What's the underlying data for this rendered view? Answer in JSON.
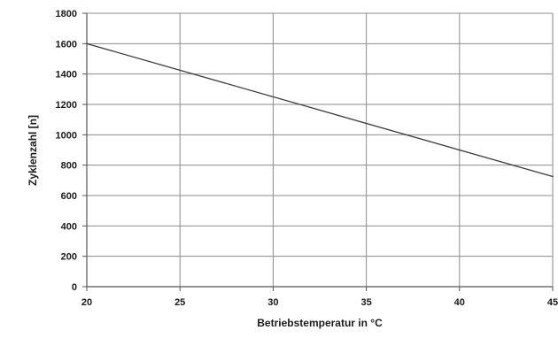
{
  "chart_data": {
    "type": "line",
    "title": "",
    "xlabel": "Betriebstemperatur in °C",
    "ylabel": "Zyklenzahl [n]",
    "xlim": [
      20,
      45
    ],
    "ylim": [
      0,
      1800
    ],
    "x_ticks": [
      "20",
      "25",
      "30",
      "35",
      "40",
      "45"
    ],
    "y_ticks": [
      "0",
      "200",
      "400",
      "600",
      "800",
      "1000",
      "1200",
      "1400",
      "1600",
      "1800"
    ],
    "grid": true,
    "legend": "none",
    "series": [
      {
        "x": [
          20,
          45
        ],
        "y": [
          1600,
          725
        ]
      }
    ],
    "colors": {
      "line": "#3a3a3a",
      "grid": "#8c8c8c",
      "axis": "#555555"
    }
  }
}
